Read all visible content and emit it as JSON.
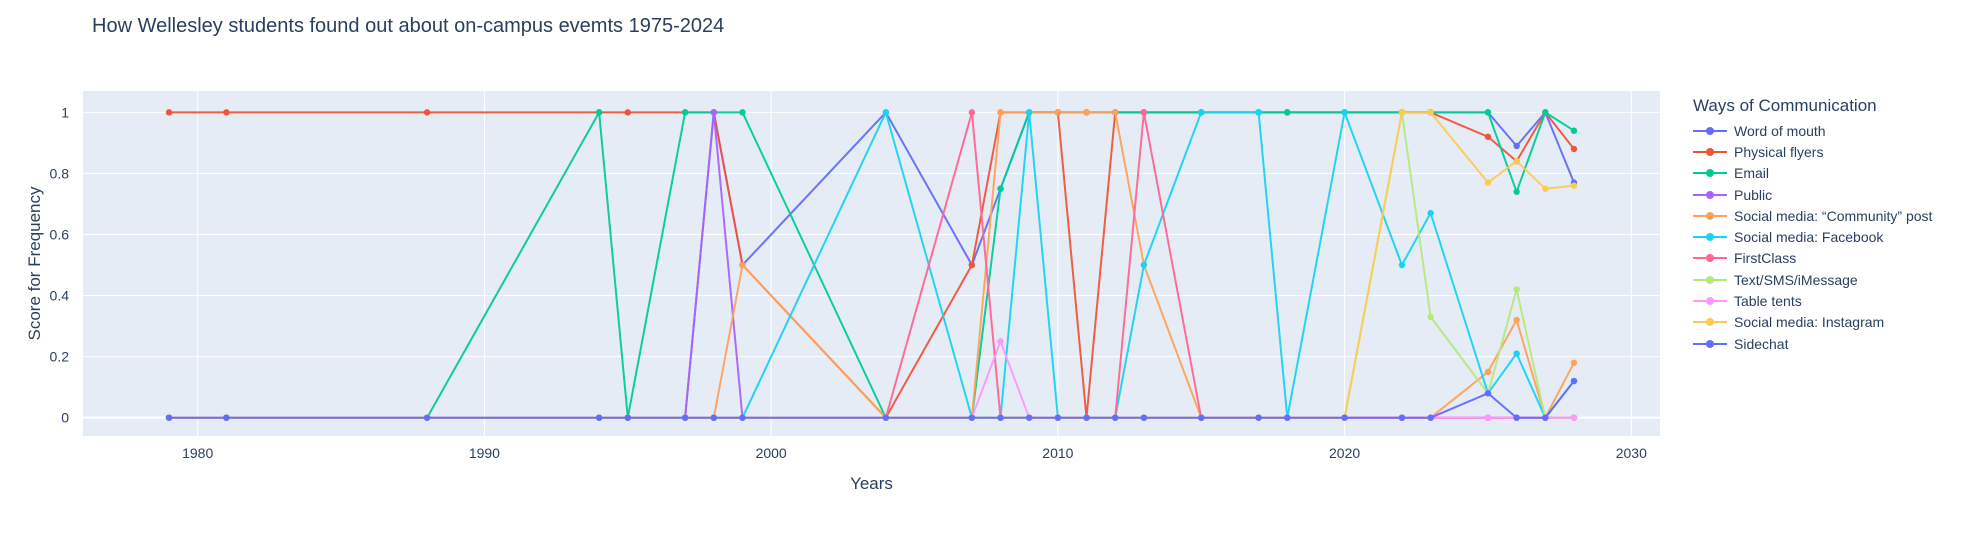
{
  "chart_data": {
    "type": "line",
    "title": "How Wellesley students found out about on-campus evemts 1975-2024",
    "xlabel": "Years",
    "ylabel": "Score for Frequency",
    "xlim": [
      1976,
      2031
    ],
    "ylim": [
      -0.06,
      1.07
    ],
    "x_ticks": [
      1980,
      1990,
      2000,
      2010,
      2020,
      2030
    ],
    "y_ticks": [
      0,
      0.2,
      0.4,
      0.6,
      0.8,
      1
    ],
    "y_tick_labels": [
      "0",
      "0.2",
      "0.4",
      "0.6",
      "0.8",
      "1"
    ],
    "grid": true,
    "legend_title": "Ways of Communication",
    "legend_position": "right",
    "x": [
      1979,
      1981,
      1988,
      1994,
      1995,
      1997,
      1998,
      1999,
      2004,
      2007,
      2008,
      2009,
      2010,
      2011,
      2012,
      2013,
      2015,
      2017,
      2018,
      2020,
      2022,
      2023,
      2025,
      2026,
      2027,
      2028
    ],
    "series": [
      {
        "name": "Word of mouth",
        "color": "#636efa",
        "values": [
          0,
          0,
          0,
          0,
          0,
          0,
          1,
          0.5,
          1,
          0.5,
          0.75,
          1,
          1,
          1,
          1,
          1,
          1,
          1,
          1,
          1,
          1,
          1,
          1,
          0.89,
          1,
          0.77
        ]
      },
      {
        "name": "Physical flyers",
        "color": "#EF553B",
        "values": [
          1,
          1,
          1,
          1,
          1,
          1,
          1,
          0.5,
          0,
          0.5,
          1,
          1,
          1,
          0,
          1,
          1,
          1,
          1,
          1,
          1,
          1,
          1,
          0.92,
          0.84,
          1,
          0.88
        ]
      },
      {
        "name": "Email",
        "color": "#00cc96",
        "values": [
          0,
          0,
          0,
          1,
          0,
          1,
          1,
          1,
          0,
          0,
          0.75,
          1,
          1,
          1,
          1,
          1,
          1,
          1,
          1,
          1,
          1,
          1,
          1,
          0.74,
          1,
          0.94
        ]
      },
      {
        "name": "Public",
        "color": "#ab63fa",
        "values": [
          0,
          0,
          0,
          0,
          0,
          0,
          1,
          0,
          0,
          0,
          0,
          0,
          0,
          0,
          0,
          0,
          0,
          0,
          0,
          0,
          0,
          0,
          0,
          0,
          0,
          0
        ]
      },
      {
        "name": "Social media: “Community” post",
        "color": "#FFA15A",
        "values": [
          0,
          0,
          0,
          0,
          0,
          0,
          0,
          0.5,
          0,
          0,
          1,
          1,
          1,
          1,
          1,
          0.5,
          0,
          0,
          0,
          0,
          0,
          0,
          0.15,
          0.32,
          0,
          0.18
        ]
      },
      {
        "name": "Social media: Facebook",
        "color": "#19d3f3",
        "values": [
          0,
          0,
          0,
          0,
          0,
          0,
          0,
          0,
          1,
          0,
          0,
          1,
          0,
          0,
          0,
          0.5,
          1,
          1,
          0,
          1,
          0.5,
          0.67,
          0.08,
          0.21,
          0,
          0.12
        ]
      },
      {
        "name": "FirstClass",
        "color": "#FF6692",
        "values": [
          0,
          0,
          0,
          0,
          0,
          0,
          0,
          0,
          0,
          1,
          0,
          0,
          0,
          0,
          0,
          1,
          0,
          0,
          0,
          0,
          0,
          0,
          0,
          0,
          0,
          0
        ]
      },
      {
        "name": "Text/SMS/iMessage",
        "color": "#B6E880",
        "values": [
          0,
          0,
          0,
          0,
          0,
          0,
          0,
          0,
          0,
          0,
          0,
          0,
          0,
          0,
          0,
          0,
          0,
          0,
          0,
          0,
          1,
          0.33,
          0.08,
          0.42,
          0,
          0
        ]
      },
      {
        "name": "Table tents",
        "color": "#FF97FF",
        "values": [
          0,
          0,
          0,
          0,
          0,
          0,
          0,
          0,
          0,
          0,
          0.25,
          0,
          0,
          0,
          0,
          0,
          0,
          0,
          0,
          0,
          0,
          0,
          0,
          0,
          0,
          0
        ]
      },
      {
        "name": "Social media: Instagram",
        "color": "#FECB52",
        "values": [
          0,
          0,
          0,
          0,
          0,
          0,
          0,
          0,
          0,
          0,
          0,
          0,
          0,
          0,
          0,
          0,
          0,
          0,
          0,
          0,
          1,
          1,
          0.77,
          0.84,
          0.75,
          0.76
        ]
      },
      {
        "name": "Sidechat",
        "color": "#636efa",
        "values": [
          0,
          0,
          0,
          0,
          0,
          0,
          0,
          0,
          0,
          0,
          0,
          0,
          0,
          0,
          0,
          0,
          0,
          0,
          0,
          0,
          0,
          0,
          0.08,
          0,
          0,
          0.12
        ]
      }
    ]
  }
}
